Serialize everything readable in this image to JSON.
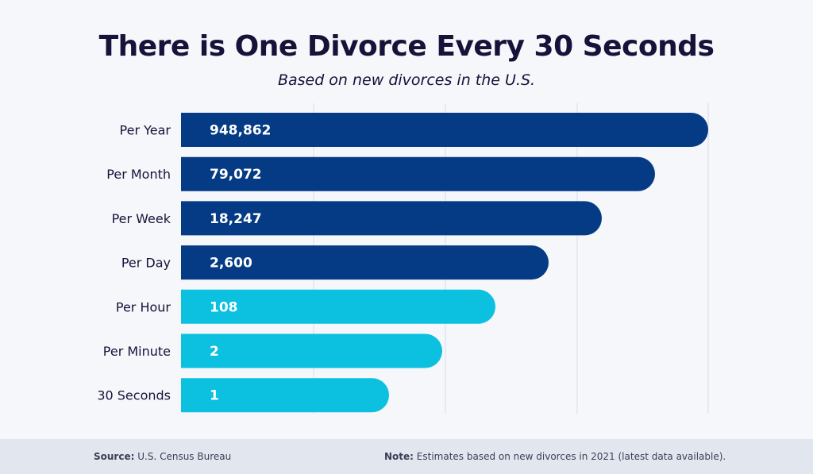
{
  "header": {
    "title": "There is One Divorce Every 30 Seconds",
    "subtitle": "Based on new divorces in the U.S."
  },
  "chart_data": {
    "type": "bar",
    "orientation": "horizontal",
    "categories": [
      "Per Year",
      "Per Month",
      "Per Week",
      "Per Day",
      "Per Hour",
      "Per Minute",
      "30 Seconds"
    ],
    "series": [
      {
        "values": [
          948862,
          79072,
          18247,
          2600,
          108,
          2,
          1
        ]
      }
    ],
    "data_labels": [
      "948,862",
      "79,072",
      "18,247",
      "2,600",
      "108",
      "2",
      "1"
    ],
    "bar_colors": [
      "#053b84",
      "#053b84",
      "#053b84",
      "#053b84",
      "#0cc0e0",
      "#0cc0e0",
      "#0cc0e0"
    ],
    "grid": true,
    "note": "bar lengths are illustrative (ranked), not proportional to values"
  },
  "footer": {
    "source_label": "Source:",
    "source_text": "U.S. Census Bureau",
    "note_label": "Note:",
    "note_text": "Estimates based on new divorces in 2021 (latest data available)."
  }
}
